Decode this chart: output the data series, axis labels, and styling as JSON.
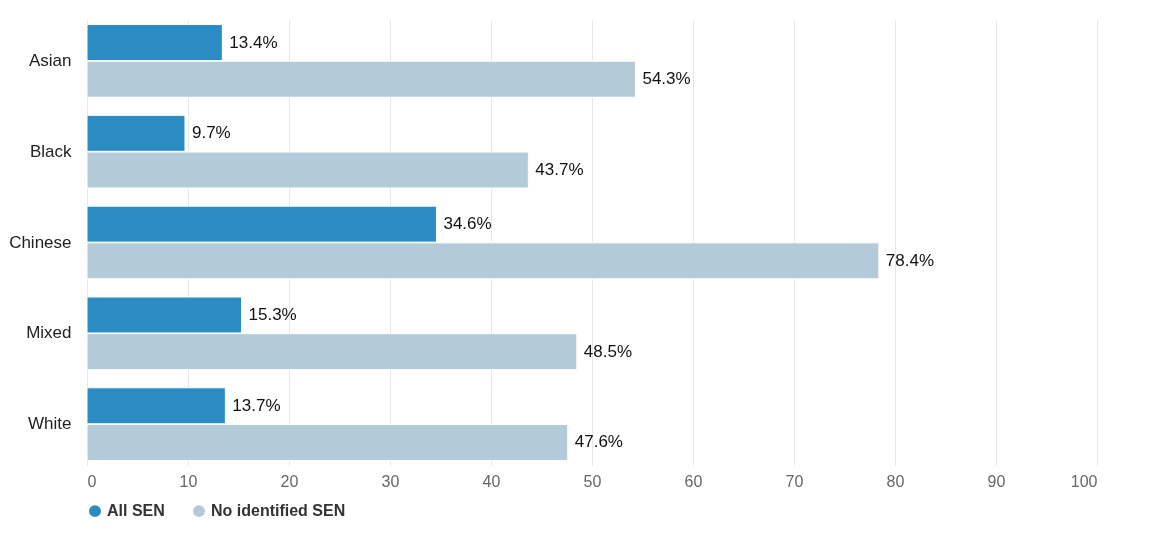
{
  "chart_data": {
    "type": "bar",
    "orientation": "horizontal",
    "categories": [
      "Asian",
      "Black",
      "Chinese",
      "Mixed",
      "White"
    ],
    "series": [
      {
        "name": "All SEN",
        "color": "#2b8cc4",
        "values": [
          13.4,
          9.7,
          34.6,
          15.3,
          13.7
        ],
        "value_labels": [
          "13.4%",
          "9.7%",
          "34.6%",
          "15.3%",
          "13.7%"
        ]
      },
      {
        "name": "No identified SEN",
        "color": "#b3cbd9",
        "values": [
          54.3,
          43.7,
          78.4,
          48.5,
          47.6
        ],
        "value_labels": [
          "54.3%",
          "43.7%",
          "78.4%",
          "48.5%",
          "47.6%"
        ]
      }
    ],
    "xlim": [
      0,
      100
    ],
    "xticks": [
      0,
      10,
      20,
      30,
      40,
      50,
      60,
      70,
      80,
      90,
      100
    ],
    "grid": "x",
    "legend": "bottom"
  }
}
